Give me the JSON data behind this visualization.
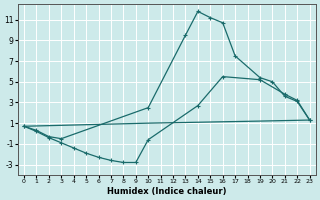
{
  "xlabel": "Humidex (Indice chaleur)",
  "ylabel": "",
  "xlim": [
    -0.5,
    23.5
  ],
  "ylim": [
    -4,
    12.5
  ],
  "yticks": [
    -3,
    -1,
    1,
    3,
    5,
    7,
    9,
    11
  ],
  "xticks": [
    0,
    1,
    2,
    3,
    4,
    5,
    6,
    7,
    8,
    9,
    10,
    11,
    12,
    13,
    14,
    15,
    16,
    17,
    18,
    19,
    20,
    21,
    22,
    23
  ],
  "bg_color": "#cdeaea",
  "line_color": "#1a6b6b",
  "grid_color": "#ffffff",
  "line1_x": [
    0,
    1,
    2,
    3,
    10,
    13,
    14,
    15,
    16,
    17,
    19,
    20,
    21,
    22,
    23
  ],
  "line1_y": [
    0.7,
    0.3,
    -0.3,
    -0.5,
    2.5,
    9.5,
    11.8,
    11.2,
    10.7,
    7.5,
    5.4,
    5.0,
    3.6,
    3.1,
    1.3
  ],
  "line2_x": [
    0,
    1,
    2,
    3,
    4,
    5,
    6,
    7,
    8,
    9,
    10,
    14,
    16,
    19,
    21,
    22,
    23
  ],
  "line2_y": [
    0.7,
    0.2,
    -0.4,
    -0.9,
    -1.4,
    -1.9,
    -2.3,
    -2.6,
    -2.8,
    -2.8,
    -0.6,
    2.7,
    5.5,
    5.2,
    3.8,
    3.2,
    1.3
  ],
  "line3_x": [
    0,
    10,
    19,
    23
  ],
  "line3_y": [
    0.7,
    1.0,
    1.2,
    1.3
  ]
}
